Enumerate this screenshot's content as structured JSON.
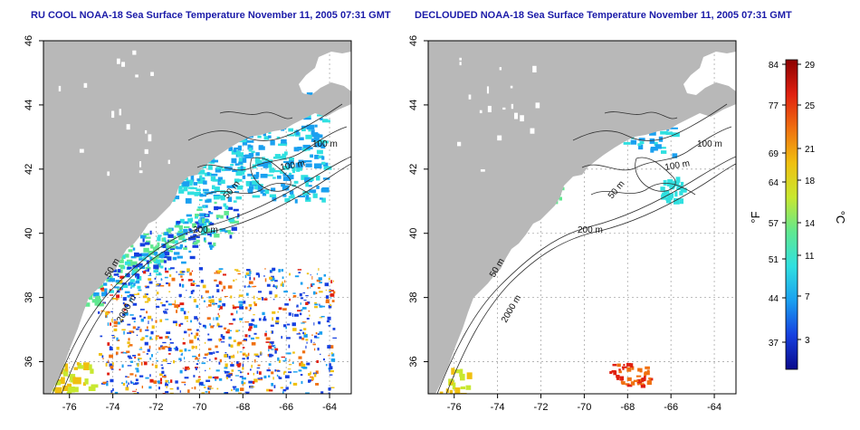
{
  "chart_data": [
    {
      "type": "heatmap",
      "title": "RU COOL NOAA-18 Sea Surface Temperature November 11, 2005 07:31 GMT",
      "xticks": [
        "-76",
        "-74",
        "-72",
        "-70",
        "-68",
        "-66",
        "-64"
      ],
      "yticks": [
        "36",
        "38",
        "40",
        "42",
        "44",
        "46"
      ],
      "xlim": [
        -77.2,
        -63.0
      ],
      "ylim": [
        35.0,
        46.0
      ],
      "contour_labels": [
        "100 m",
        "100 m",
        "50 m",
        "200 m",
        "50 m",
        "2000 m"
      ]
    },
    {
      "type": "heatmap",
      "title": "DECLOUDED NOAA-18 Sea Surface Temperature November 11, 2005 07:31 GMT",
      "xticks": [
        "-76",
        "-74",
        "-72",
        "-70",
        "-68",
        "-66",
        "-64"
      ],
      "yticks": [
        "36",
        "38",
        "40",
        "42",
        "44",
        "46"
      ],
      "xlim": [
        -77.2,
        -63.0
      ],
      "ylim": [
        35.0,
        46.0
      ],
      "contour_labels": [
        "100 m",
        "100 m",
        "50 m",
        "200 m",
        "50 m",
        "2000 m"
      ]
    }
  ],
  "colorbar": {
    "fahrenheit_ticks": [
      "84",
      "77",
      "69",
      "64",
      "57",
      "51",
      "44",
      "37"
    ],
    "celsius_ticks": [
      "29",
      "25",
      "21",
      "18",
      "14",
      "11",
      "7",
      "3"
    ],
    "fahrenheit_label": "°F",
    "celsius_label": "°C",
    "colors": [
      "#0a0a8c",
      "#1640e0",
      "#1aa0f0",
      "#30e0e0",
      "#60e890",
      "#c8e830",
      "#f0c010",
      "#f07010",
      "#e02010",
      "#8c0000"
    ]
  },
  "colors": {
    "land": "#b8b8b8",
    "contour": "#303030",
    "grid": "#aaaaaa",
    "cloud_free_cold": "#2ab8f0",
    "warm": "#f05010"
  }
}
